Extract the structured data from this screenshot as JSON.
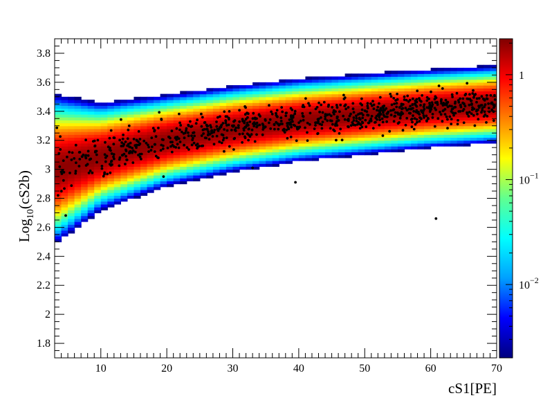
{
  "chart_data": {
    "type": "heatmap",
    "title": "",
    "xlabel": "cS1[PE]",
    "ylabel": {
      "base": "Log",
      "sub": "10",
      "rest": "(cS2b)"
    },
    "xlim": [
      3,
      70
    ],
    "ylim": [
      1.7,
      3.9
    ],
    "x_ticks": [
      10,
      20,
      30,
      40,
      50,
      60,
      70
    ],
    "y_ticks": [
      1.8,
      2.0,
      2.2,
      2.4,
      2.6,
      2.8,
      3.0,
      3.2,
      3.4,
      3.6,
      3.8
    ],
    "y_tick_labels": [
      "1.8",
      "2",
      "2.2",
      "2.4",
      "2.6",
      "2.8",
      "3",
      "3.2",
      "3.4",
      "3.6",
      "3.8"
    ],
    "band": {
      "description_points_x": [
        3,
        10,
        20,
        30,
        40,
        50,
        60,
        70
      ],
      "mean_log10_cS2b": [
        3.0,
        3.09,
        3.2,
        3.28,
        3.34,
        3.38,
        3.42,
        3.45
      ],
      "width_sigma": [
        0.14,
        0.1,
        0.085,
        0.08,
        0.077,
        0.075,
        0.073,
        0.072
      ]
    },
    "colorbar": {
      "scale": "log",
      "range": [
        0.002,
        2.2
      ],
      "ticks": [
        {
          "value": 1,
          "label": "1"
        },
        {
          "value": 0.1,
          "base": "10",
          "exp": "−1"
        },
        {
          "value": 0.01,
          "base": "10",
          "exp": "−2"
        }
      ],
      "colors": [
        "#00007f",
        "#0000ff",
        "#00a0ff",
        "#00ffff",
        "#60ff90",
        "#ffff00",
        "#ff8000",
        "#ff0000",
        "#800000"
      ]
    },
    "scatter_points": {
      "count": 900,
      "outliers": [
        [
          39.5,
          2.91
        ],
        [
          60.8,
          2.66
        ],
        [
          33.0,
          3.01
        ],
        [
          19.5,
          2.95
        ]
      ]
    }
  }
}
